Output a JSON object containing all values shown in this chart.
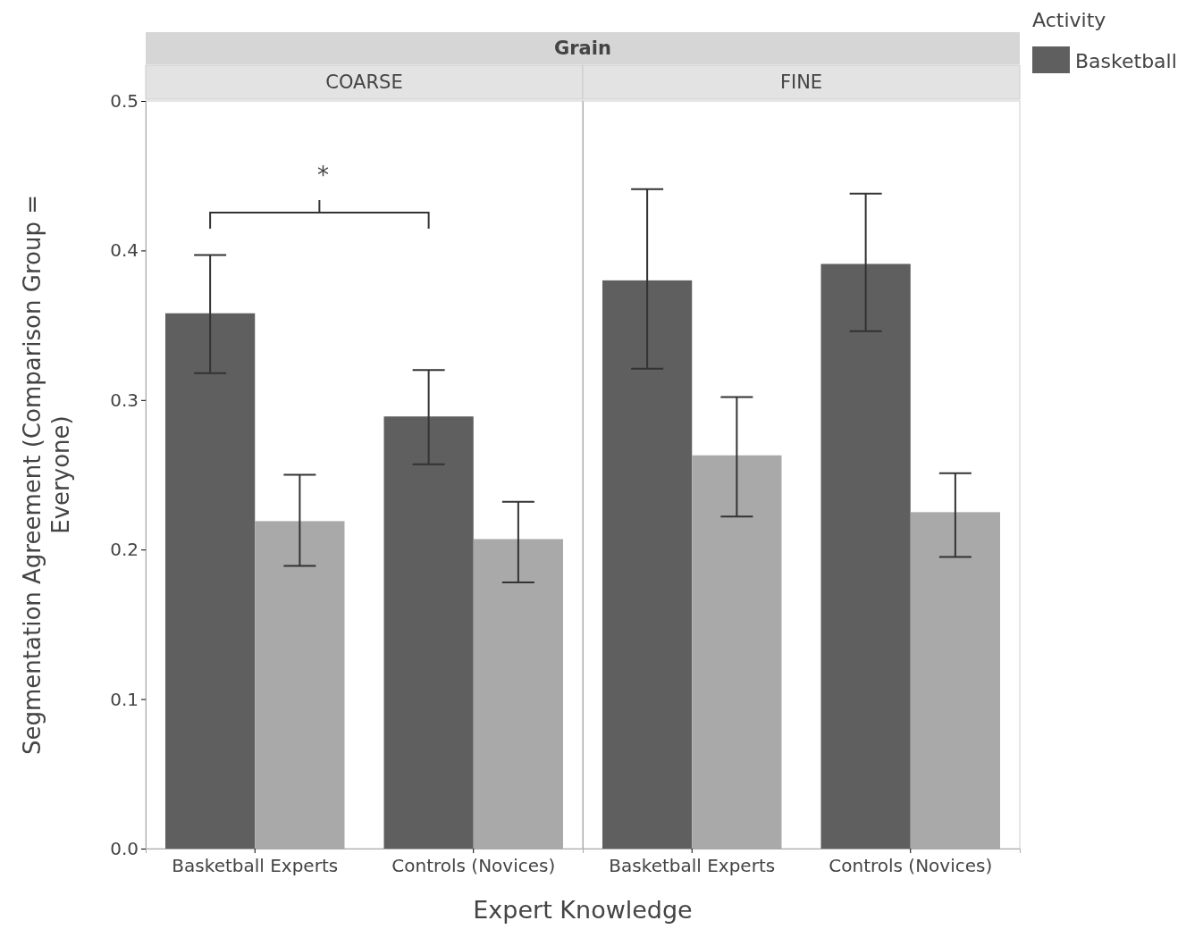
{
  "chart_data": [
    {
      "type": "bar",
      "title": "COARSE",
      "annotations": [
        "Grain",
        "*"
      ],
      "xlabel": "Expert Knowledge",
      "ylabel": "Segmentation Agreement (Comparison Group = Everyone)",
      "categories": [
        "Basketball Experts",
        "Controls (Novices)"
      ],
      "ylim": [
        0,
        0.5
      ],
      "yticks": [
        {
          "value": 0,
          "label": "0.0"
        },
        0.1,
        0.2,
        0.3,
        0.4,
        0.5
      ],
      "series": [
        {
          "color": "#5f5f5f",
          "values": [
            0.358,
            0.289
          ],
          "errors": [
            [
              0.318,
              0.397
            ],
            [
              0.257,
              0.32
            ]
          ]
        },
        {
          "color": "#a9a9a9",
          "values": [
            0.219,
            0.207
          ],
          "errors": [
            [
              0.189,
              0.25
            ],
            [
              0.178,
              0.232
            ]
          ]
        }
      ],
      "legend": false
    },
    {
      "type": "bar",
      "title": "FINE",
      "categories": [
        "Basketball Experts",
        "Controls (Novices)"
      ],
      "ylim": [
        0,
        0.5
      ],
      "yticks": [
        0,
        0.1,
        0.2,
        0.3,
        0.4,
        0.5
      ],
      "tick_labels": "x",
      "legend_title": "Activity",
      "legend": "right",
      "series": [
        {
          "name": "Basketball",
          "color": "#5f5f5f",
          "values": [
            0.38,
            0.391
          ],
          "errors": [
            [
              0.321,
              0.441
            ],
            [
              0.346,
              0.438
            ]
          ]
        },
        {
          "color": "#a9a9a9",
          "values": [
            0.263,
            0.225
          ],
          "errors": [
            [
              0.222,
              0.302
            ],
            [
              0.195,
              0.251
            ]
          ]
        }
      ]
    }
  ]
}
